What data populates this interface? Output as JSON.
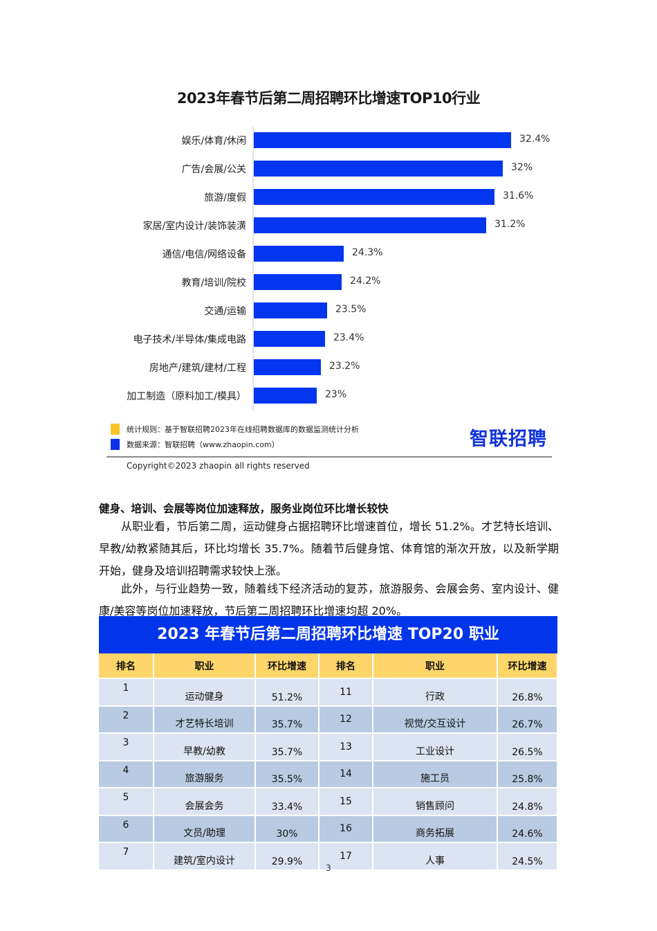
{
  "chart_data": {
    "type": "bar",
    "orientation": "horizontal",
    "title": "2023年春节后第二周招聘环比增速TOP10行业",
    "categories": [
      "娱乐/体育/休闲",
      "广告/会展/公关",
      "旅游/度假",
      "家居/室内设计/装饰装潢",
      "通信/电信/网络设备",
      "教育/培训/院校",
      "交通/运输",
      "电子技术/半导体/集成电路",
      "房地产/建筑/建材/工程",
      "加工制造（原料加工/模具）"
    ],
    "values": [
      32.4,
      32,
      31.6,
      31.2,
      24.3,
      24.2,
      23.5,
      23.4,
      23.2,
      23
    ],
    "value_labels": [
      "32.4%",
      "32%",
      "31.6%",
      "31.2%",
      "24.3%",
      "24.2%",
      "23.5%",
      "23.4%",
      "23.2%",
      "23%"
    ],
    "xlabel": "",
    "ylabel": "",
    "grid": false,
    "bar_color": "#0336ee"
  },
  "chart": {
    "title": "2023年春节后第二周招聘环比增速TOP10行业",
    "legend": [
      {
        "color": "#f8c42a",
        "text": "统计规则：基于智联招聘2023年在线招聘数据库的数据监测统计分析"
      },
      {
        "color": "#0b32e8",
        "text": "数据来源：智联招聘（www.zhaopin.com）"
      }
    ],
    "logo": "智联招聘",
    "copyright": "Copyright©2023 zhaopin all rights reserved"
  },
  "section": {
    "heading": "健身、培训、会展等岗位加速释放，服务业岗位环比增长较快",
    "paragraphs": [
      "从职业看，节后第二周，运动健身占据招聘环比增速首位，增长 51.2%。才艺特长培训、早教/幼教紧随其后，环比均增长 35.7%。随着节后健身馆、体育馆的渐次开放，以及新学期开始，健身及培训招聘需求较快上涨。",
      "此外，与行业趋势一致，随着线下经济活动的复苏，旅游服务、会展会务、室内设计、健康/美容等岗位加速释放，节后第二周招聘环比增速均超 20%。"
    ]
  },
  "table": {
    "title": "2023 年春节后第二周招聘环比增速 TOP20 职业",
    "headers": [
      "排名",
      "职业",
      "环比增速",
      "排名",
      "职业",
      "环比增速"
    ],
    "rows": [
      [
        "1",
        "运动健身",
        "51.2%",
        "11",
        "行政",
        "26.8%"
      ],
      [
        "2",
        "才艺特长培训",
        "35.7%",
        "12",
        "视觉/交互设计",
        "26.7%"
      ],
      [
        "3",
        "早教/幼教",
        "35.7%",
        "13",
        "工业设计",
        "26.5%"
      ],
      [
        "4",
        "旅游服务",
        "35.5%",
        "14",
        "施工员",
        "25.8%"
      ],
      [
        "5",
        "会展会务",
        "33.4%",
        "15",
        "销售顾问",
        "24.8%"
      ],
      [
        "6",
        "文员/助理",
        "30%",
        "16",
        "商务拓展",
        "24.6%"
      ],
      [
        "7",
        "建筑/室内设计",
        "29.9%",
        "17",
        "人事",
        "24.5%"
      ]
    ]
  },
  "page": {
    "number": "3"
  }
}
